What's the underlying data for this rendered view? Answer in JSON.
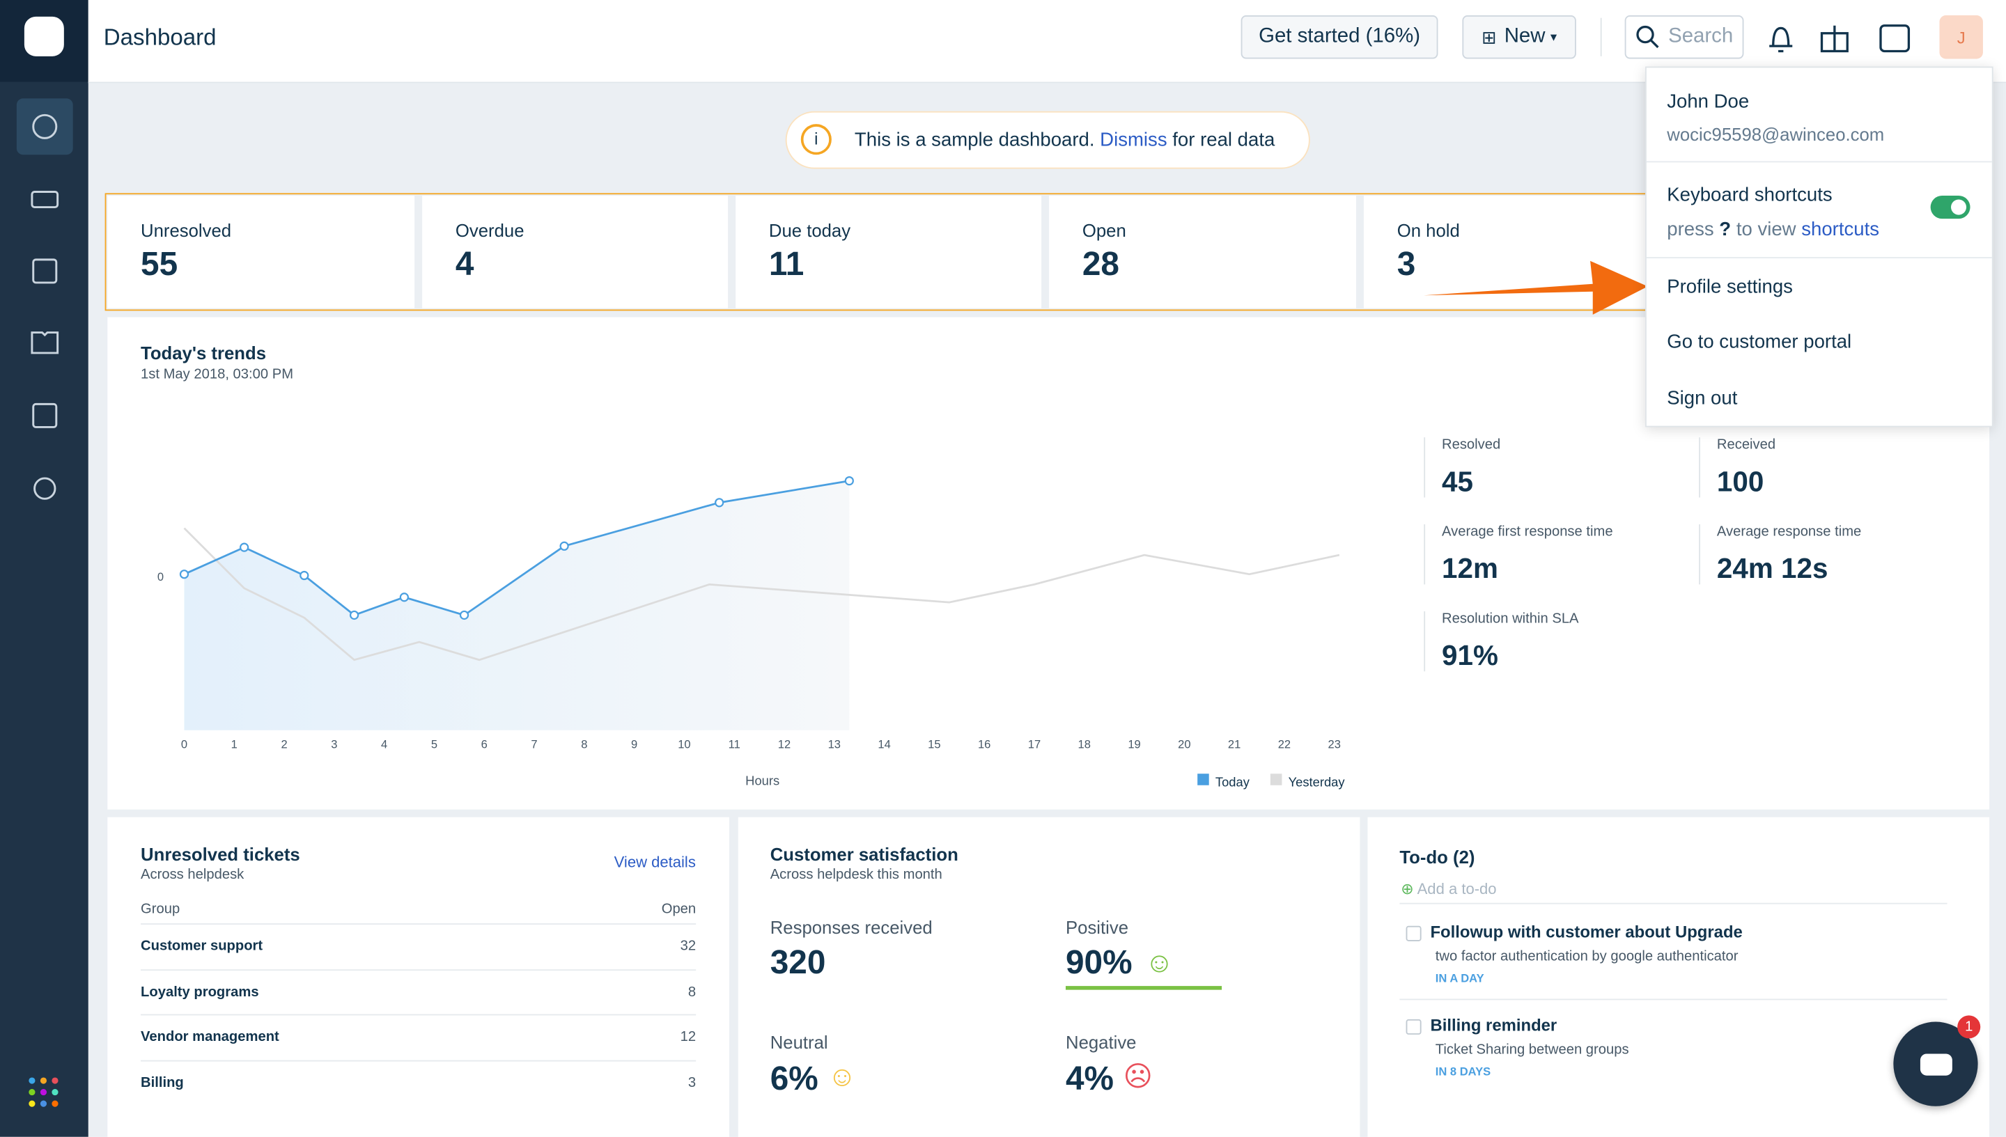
{
  "header": {
    "title": "Dashboard",
    "get_started": "Get started (16%)",
    "new": "New",
    "search": "Search",
    "avatar": "J"
  },
  "banner": {
    "text": "This is a sample dashboard.",
    "link": "Dismiss",
    "suffix": "for real data"
  },
  "stats": [
    {
      "label": "Unresolved",
      "value": 55
    },
    {
      "label": "Overdue",
      "value": 4
    },
    {
      "label": "Due today",
      "value": 11
    },
    {
      "label": "Open",
      "value": 28
    },
    {
      "label": "On hold",
      "value": 3
    }
  ],
  "trends": {
    "title": "Today's trends",
    "subtitle": "1st May 2018, 03:00 PM",
    "type": "line",
    "xlabel": "Hours",
    "xlim": [
      0,
      23
    ],
    "xticks": [
      0,
      1,
      2,
      3,
      4,
      5,
      6,
      7,
      8,
      9,
      10,
      11,
      12,
      13,
      14,
      15,
      16,
      17,
      18,
      19,
      20,
      21,
      22,
      23
    ],
    "ylim": [
      -12,
      10
    ],
    "yticks": [
      0
    ],
    "series": [
      {
        "name": "Today",
        "color": "#4a9fe0",
        "x": [
          0,
          1.2,
          2.4,
          3.4,
          4.4,
          5.6,
          7.6,
          10.7,
          13.3
        ],
        "values": [
          0.2,
          2.3,
          0.1,
          -3,
          -1.6,
          -3,
          2.4,
          5.8,
          7.5
        ]
      },
      {
        "name": "Yesterday",
        "color": "#dcdcdc",
        "x": [
          0,
          1.2,
          2.4,
          3.4,
          4.7,
          5.9,
          10.5,
          15.3,
          17,
          19.2,
          21.3,
          23.1
        ],
        "values": [
          3.8,
          -0.9,
          -3.2,
          -6.5,
          -5.1,
          -6.5,
          -0.6,
          -2,
          -0.6,
          1.7,
          0.2,
          1.7
        ]
      }
    ]
  },
  "metrics": [
    {
      "label": "Resolved",
      "value": 45
    },
    {
      "label": "Received",
      "value": 100
    },
    {
      "label": "Average first response time",
      "value": "12m"
    },
    {
      "label": "Average response time",
      "value": "24m 12s"
    },
    {
      "label": "Resolution within SLA",
      "value": "91%"
    }
  ],
  "menu": {
    "name": "John Doe",
    "email": "wocic95598@awinceo.com",
    "shortcuts_title": "Keyboard shortcuts",
    "hint_pre": "press",
    "hint_key": "?",
    "hint_mid": "to view",
    "hint_link": "shortcuts",
    "items": [
      "Profile settings",
      "Go to customer portal",
      "Sign out"
    ]
  },
  "unresolved": {
    "title": "Unresolved tickets",
    "subtitle": "Across helpdesk",
    "link": "View details",
    "columns": [
      "Group",
      "Open"
    ],
    "rows": [
      [
        "Customer support",
        32
      ],
      [
        "Loyalty programs",
        8
      ],
      [
        "Vendor management",
        12
      ],
      [
        "Billing",
        3
      ]
    ]
  },
  "csat": {
    "title": "Customer satisfaction",
    "subtitle": "Across helpdesk this month",
    "responses_label": "Responses received",
    "responses": 320,
    "positive_label": "Positive",
    "positive": "90%",
    "neutral_label": "Neutral",
    "neutral": "6%",
    "negative_label": "Negative",
    "negative": "4%"
  },
  "todo": {
    "title": "To-do (2)",
    "add": "Add a to-do",
    "items": [
      {
        "title": "Followup with customer about Upgrade",
        "ticket": "two factor authentication by google authenticator",
        "due": "IN A DAY"
      },
      {
        "title": "Billing reminder",
        "ticket": "Ticket Sharing between groups",
        "due": "IN 8 DAYS"
      }
    ]
  },
  "chat_badge": 1
}
